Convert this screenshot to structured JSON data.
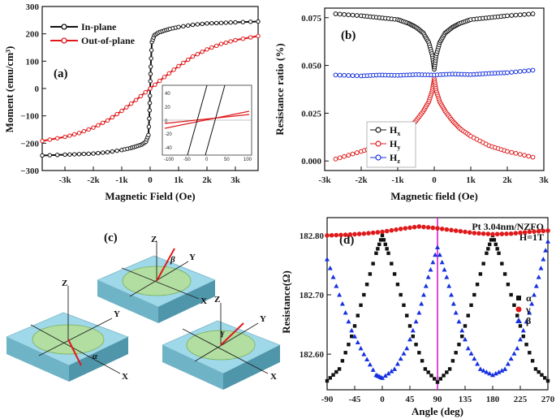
{
  "chart_data": [
    {
      "id": "a",
      "type": "line",
      "panel_label": "(a)",
      "xlabel": "Magnetic Field (Oe)",
      "ylabel": "Moment (emu/cm³)",
      "xlim": [
        -3800,
        3800
      ],
      "ylim": [
        -300,
        300
      ],
      "xticks": [
        -3000,
        -2000,
        -1000,
        0,
        1000,
        2000,
        3000
      ],
      "xtick_labels": [
        "-3k",
        "-2k",
        "-1k",
        "0",
        "1k",
        "2k",
        "3k"
      ],
      "yticks": [
        -300,
        -200,
        -100,
        0,
        100,
        200,
        300
      ],
      "ytick_labels": [
        "−300",
        "−200",
        "−100",
        "0",
        "100",
        "200",
        "300"
      ],
      "series": [
        {
          "name": "In-plane",
          "color": "#111111",
          "marker": "circle",
          "x": [
            -3800,
            -3000,
            -2500,
            -2000,
            -1500,
            -1000,
            -700,
            -500,
            -300,
            -150,
            -60,
            -20,
            0,
            20,
            60,
            150,
            300,
            500,
            700,
            1000,
            1500,
            2000,
            2500,
            3000,
            3800
          ],
          "y": [
            -245,
            -242,
            -240,
            -238,
            -233,
            -225,
            -218,
            -212,
            -205,
            -195,
            -170,
            -80,
            0,
            80,
            170,
            195,
            205,
            212,
            218,
            225,
            233,
            238,
            240,
            242,
            245
          ]
        },
        {
          "name": "Out-of-plane",
          "color": "#e0191a",
          "marker": "circle",
          "x": [
            -3800,
            -3000,
            -2500,
            -2000,
            -1500,
            -1000,
            -500,
            0,
            500,
            1000,
            1500,
            2000,
            2500,
            3000,
            3800
          ],
          "y": [
            -192,
            -177,
            -163,
            -143,
            -117,
            -82,
            -42,
            0,
            42,
            82,
            117,
            143,
            163,
            177,
            192
          ]
        }
      ],
      "inset": {
        "xlim": [
          -100,
          100
        ],
        "ylim": [
          -50,
          50
        ],
        "xtick_labels": [
          "-100",
          "-50",
          "0",
          "50",
          "100"
        ],
        "ytick_labels": [
          "40",
          "20",
          "0",
          "-20",
          "-40"
        ]
      }
    },
    {
      "id": "b",
      "type": "scatter",
      "panel_label": "(b)",
      "xlabel": "Magnetic field (Oe)",
      "ylabel": "Resistance ratio (%)",
      "xlim": [
        -3000,
        3000
      ],
      "ylim": [
        -0.005,
        0.08
      ],
      "xticks": [
        -3000,
        -2000,
        -1000,
        0,
        1000,
        2000,
        3000
      ],
      "xtick_labels": [
        "-3k",
        "-2k",
        "-1k",
        "0",
        "1k",
        "2k",
        "3k"
      ],
      "yticks": [
        0.0,
        0.025,
        0.05,
        0.075
      ],
      "ytick_labels": [
        "0.000",
        "0.025",
        "0.050",
        "0.075"
      ],
      "series": [
        {
          "name": "H",
          "sub": "x",
          "color": "#111111",
          "x": [
            -2700,
            -2000,
            -1500,
            -1000,
            -700,
            -500,
            -300,
            -150,
            -50,
            0,
            50,
            150,
            300,
            500,
            700,
            1000,
            1500,
            2000,
            2700
          ],
          "y": [
            0.077,
            0.076,
            0.075,
            0.074,
            0.072,
            0.07,
            0.067,
            0.062,
            0.055,
            0.048,
            0.055,
            0.062,
            0.067,
            0.07,
            0.072,
            0.074,
            0.075,
            0.076,
            0.077
          ]
        },
        {
          "name": "H",
          "sub": "y",
          "color": "#e0191a",
          "x": [
            -2700,
            -2000,
            -1500,
            -1000,
            -700,
            -500,
            -300,
            -150,
            -50,
            0,
            50,
            150,
            300,
            500,
            700,
            1000,
            1500,
            2000,
            2700
          ],
          "y": [
            0.001,
            0.005,
            0.008,
            0.013,
            0.017,
            0.021,
            0.026,
            0.031,
            0.037,
            0.043,
            0.037,
            0.031,
            0.026,
            0.021,
            0.017,
            0.013,
            0.008,
            0.005,
            0.002
          ]
        },
        {
          "name": "H",
          "sub": "z",
          "color": "#1530e0",
          "x": [
            -2700,
            -2000,
            -1500,
            -1000,
            -500,
            0,
            500,
            1000,
            1500,
            2000,
            2700
          ],
          "y": [
            0.045,
            0.0445,
            0.045,
            0.0448,
            0.0452,
            0.045,
            0.0455,
            0.0452,
            0.0458,
            0.0462,
            0.0475
          ]
        }
      ]
    },
    {
      "id": "d",
      "type": "scatter",
      "panel_label": "(d)",
      "xlabel": "Angle (deg)",
      "ylabel": "Resistance(Ω)",
      "annotation": [
        "Pt 3.04nm/NZFO",
        "H=1T"
      ],
      "xlim": [
        -90,
        270
      ],
      "ylim": [
        182.54,
        182.83
      ],
      "xticks": [
        -90,
        -45,
        0,
        45,
        90,
        135,
        180,
        225,
        270
      ],
      "xtick_labels": [
        "-90",
        "-45",
        "0",
        "45",
        "90",
        "135",
        "180",
        "225",
        "270"
      ],
      "yticks": [
        182.6,
        182.7,
        182.8
      ],
      "ytick_labels": [
        "182.60",
        "182.70",
        "182.80"
      ],
      "vline_x": 90,
      "vline_color": "#d61fd6",
      "series": [
        {
          "name": "α",
          "color": "#111111",
          "marker": "square",
          "x": [
            -90,
            -70,
            -50,
            -30,
            -10,
            0,
            10,
            30,
            50,
            70,
            90,
            110,
            130,
            150,
            170,
            180,
            190,
            210,
            230,
            250,
            270
          ],
          "y": [
            182.555,
            182.575,
            182.63,
            182.7,
            182.77,
            182.8,
            182.77,
            182.7,
            182.63,
            182.575,
            182.553,
            182.575,
            182.63,
            182.7,
            182.77,
            182.8,
            182.77,
            182.7,
            182.63,
            182.575,
            182.555
          ]
        },
        {
          "name": "γ",
          "color": "#e0191a",
          "marker": "circle",
          "x": [
            -90,
            -60,
            -30,
            0,
            30,
            60,
            90,
            120,
            150,
            180,
            210,
            240,
            270
          ],
          "y": [
            182.8,
            182.801,
            182.803,
            182.806,
            182.811,
            182.815,
            182.812,
            182.808,
            182.804,
            182.802,
            182.803,
            182.806,
            182.808
          ]
        },
        {
          "name": "β",
          "color": "#1530e0",
          "marker": "triangle",
          "x": [
            -90,
            -70,
            -50,
            -30,
            -10,
            0,
            20,
            40,
            60,
            75,
            90,
            105,
            120,
            140,
            160,
            180,
            200,
            220,
            240,
            255,
            270
          ],
          "y": [
            182.76,
            182.7,
            182.64,
            182.6,
            182.565,
            182.56,
            182.575,
            182.61,
            182.67,
            182.73,
            182.78,
            182.73,
            182.67,
            182.61,
            182.575,
            182.565,
            182.575,
            182.61,
            182.67,
            182.73,
            182.79
          ]
        }
      ]
    }
  ],
  "diagram_c": {
    "panel_label": "(c)",
    "angle_labels": [
      "β",
      "α",
      "γ"
    ],
    "axis_labels": {
      "z": "Z",
      "y": "Y",
      "x": "X"
    }
  }
}
